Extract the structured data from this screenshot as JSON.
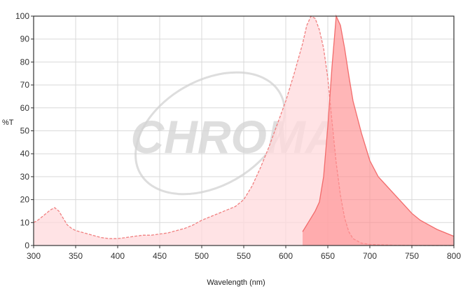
{
  "chart_data": {
    "type": "area",
    "xlabel": "Wavelength (nm)",
    "ylabel": "%T",
    "xlim": [
      300,
      800
    ],
    "ylim": [
      0,
      100
    ],
    "x_ticks": [
      300,
      350,
      400,
      450,
      500,
      550,
      600,
      650,
      700,
      750,
      800
    ],
    "y_ticks": [
      0,
      10,
      20,
      30,
      40,
      50,
      60,
      70,
      80,
      90,
      100
    ],
    "grid": true,
    "legend": "none",
    "watermark": "CHROMA",
    "colors": {
      "excitation": "#f08080",
      "emission": "#f26b6b",
      "grid": "#d9d9d9",
      "frame": "#333333"
    },
    "series": [
      {
        "x": [
          300,
          305,
          310,
          315,
          320,
          325,
          330,
          335,
          340,
          345,
          350,
          360,
          370,
          380,
          390,
          400,
          410,
          420,
          430,
          440,
          450,
          460,
          470,
          480,
          490,
          500,
          510,
          520,
          530,
          540,
          550,
          560,
          570,
          580,
          590,
          600,
          610,
          620,
          625,
          630,
          635,
          640,
          645,
          650,
          655,
          660,
          665,
          670,
          675,
          680,
          690,
          700,
          710,
          720,
          730,
          740,
          750,
          760,
          770,
          780,
          790,
          800
        ],
        "values": [
          10,
          11,
          12.5,
          14,
          15.5,
          16.5,
          15,
          12,
          9,
          7.5,
          6.5,
          5.5,
          4.5,
          3.5,
          3,
          3,
          3.5,
          4,
          4.5,
          4.5,
          5,
          5.5,
          6.5,
          7.5,
          9,
          11,
          12.5,
          14,
          15.5,
          17,
          20,
          26,
          34,
          43,
          53,
          63,
          75,
          88,
          96,
          100,
          99,
          94,
          86,
          73,
          54,
          36,
          22,
          12,
          6,
          3,
          1,
          0.5,
          0.3,
          0.2,
          0.1,
          0.1,
          0,
          0,
          0,
          0,
          0,
          0
        ]
      },
      {
        "x": [
          620,
          625,
          630,
          635,
          640,
          645,
          650,
          655,
          660,
          665,
          670,
          675,
          680,
          690,
          700,
          710,
          720,
          730,
          740,
          750,
          760,
          770,
          780,
          790,
          800
        ],
        "values": [
          6,
          9,
          12,
          15,
          19,
          30,
          52,
          78,
          100,
          96,
          86,
          74,
          63,
          49,
          37,
          30,
          26,
          22,
          18,
          14,
          11,
          9,
          7,
          5.5,
          4
        ]
      }
    ]
  }
}
